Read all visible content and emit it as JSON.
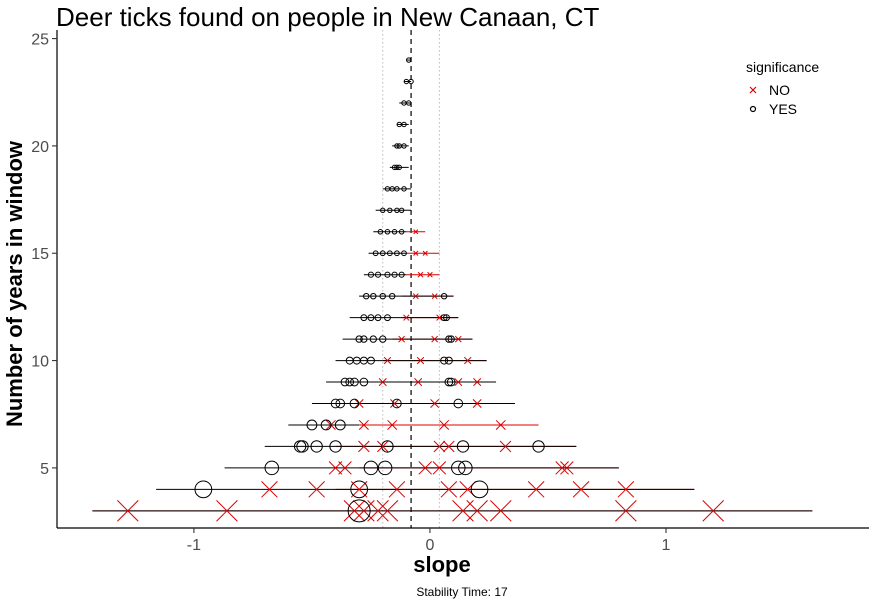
{
  "chart_data": {
    "type": "scatter",
    "title": "Deer ticks found on people in New Canaan, CT",
    "xlabel": "slope",
    "ylabel": "Number of years in window",
    "caption": "Stability Time: 17",
    "xlim": [
      -1.58,
      1.86
    ],
    "ylim": [
      2.2,
      25.4
    ],
    "xticks": [
      -1,
      0,
      1
    ],
    "xtick_labels": [
      "-1",
      "0",
      "1"
    ],
    "yticks": [
      5,
      10,
      15,
      20,
      25
    ],
    "ytick_labels": [
      "5",
      "10",
      "15",
      "20",
      "25"
    ],
    "grid": false,
    "reference_lines": {
      "dashed_x": -0.08,
      "dotted_x": [
        -0.2,
        0.04
      ]
    },
    "legend": {
      "title": "significance",
      "placement": "top-right",
      "entries": [
        {
          "label": "NO",
          "marker": "x",
          "color": "#dd0000"
        },
        {
          "label": "YES",
          "marker": "circle",
          "color": "#000000"
        }
      ]
    },
    "colors": {
      "NO": "#dd0000",
      "YES": "#000000"
    },
    "series": [
      {
        "name": "NO",
        "points": [
          {
            "y": 3,
            "x": -1.28,
            "lo": -1.43,
            "hi": 1.62
          },
          {
            "y": 3,
            "x": -0.86,
            "lo": -1.43,
            "hi": 1.62
          },
          {
            "y": 3,
            "x": -0.32,
            "lo": -1.43,
            "hi": 1.62
          },
          {
            "y": 3,
            "x": -0.28,
            "lo": -1.43,
            "hi": 1.62
          },
          {
            "y": 3,
            "x": -0.22,
            "lo": -1.43,
            "hi": 1.62
          },
          {
            "y": 3,
            "x": -0.18,
            "lo": -1.43,
            "hi": 1.62
          },
          {
            "y": 3,
            "x": 0.14,
            "lo": -1.43,
            "hi": 1.62
          },
          {
            "y": 3,
            "x": 0.2,
            "lo": -1.43,
            "hi": 1.62
          },
          {
            "y": 3,
            "x": 0.3,
            "lo": -1.43,
            "hi": 1.62
          },
          {
            "y": 3,
            "x": 0.83,
            "lo": -1.43,
            "hi": 1.62
          },
          {
            "y": 3,
            "x": 1.2,
            "lo": -1.43,
            "hi": 1.62
          },
          {
            "y": 4,
            "x": -0.68,
            "lo": -0.4,
            "hi": 1.12
          },
          {
            "y": 4,
            "x": -0.48,
            "lo": -0.4,
            "hi": 1.12
          },
          {
            "y": 4,
            "x": -0.3,
            "lo": -0.4,
            "hi": 1.12
          },
          {
            "y": 4,
            "x": -0.14,
            "lo": -0.4,
            "hi": 1.12
          },
          {
            "y": 4,
            "x": 0.08,
            "lo": -0.4,
            "hi": 1.12
          },
          {
            "y": 4,
            "x": 0.16,
            "lo": -0.4,
            "hi": 1.12
          },
          {
            "y": 4,
            "x": 0.45,
            "lo": -0.4,
            "hi": 1.12
          },
          {
            "y": 4,
            "x": 0.64,
            "lo": -0.4,
            "hi": 1.12
          },
          {
            "y": 4,
            "x": 0.83,
            "lo": -0.4,
            "hi": 1.12
          },
          {
            "y": 5,
            "x": -0.4,
            "lo": -0.3,
            "hi": 0.8
          },
          {
            "y": 5,
            "x": -0.36,
            "lo": -0.3,
            "hi": 0.8
          },
          {
            "y": 5,
            "x": -0.02,
            "lo": -0.3,
            "hi": 0.8
          },
          {
            "y": 5,
            "x": 0.04,
            "lo": -0.3,
            "hi": 0.8
          },
          {
            "y": 5,
            "x": 0.56,
            "lo": -0.3,
            "hi": 0.8
          },
          {
            "y": 5,
            "x": 0.58,
            "lo": -0.3,
            "hi": 0.8
          },
          {
            "y": 6,
            "x": -0.28,
            "lo": -0.4,
            "hi": 0.62
          },
          {
            "y": 6,
            "x": -0.2,
            "lo": -0.4,
            "hi": 0.62
          },
          {
            "y": 6,
            "x": 0.04,
            "lo": -0.4,
            "hi": 0.62
          },
          {
            "y": 6,
            "x": 0.08,
            "lo": -0.4,
            "hi": 0.62
          },
          {
            "y": 6,
            "x": 0.32,
            "lo": -0.4,
            "hi": 0.62
          },
          {
            "y": 7,
            "x": -0.42,
            "lo": -0.3,
            "hi": 0.46
          },
          {
            "y": 7,
            "x": -0.28,
            "lo": -0.3,
            "hi": 0.46
          },
          {
            "y": 7,
            "x": -0.16,
            "lo": -0.3,
            "hi": 0.46
          },
          {
            "y": 7,
            "x": 0.06,
            "lo": -0.3,
            "hi": 0.46
          },
          {
            "y": 7,
            "x": 0.3,
            "lo": -0.3,
            "hi": 0.46
          },
          {
            "y": 8,
            "x": -0.3,
            "lo": -0.3,
            "hi": 0.36
          },
          {
            "y": 8,
            "x": -0.15,
            "lo": -0.3,
            "hi": 0.36
          },
          {
            "y": 8,
            "x": 0.02,
            "lo": -0.3,
            "hi": 0.36
          },
          {
            "y": 8,
            "x": 0.2,
            "lo": -0.3,
            "hi": 0.36
          },
          {
            "y": 9,
            "x": -0.2,
            "lo": -0.25,
            "hi": 0.28
          },
          {
            "y": 9,
            "x": -0.05,
            "lo": -0.25,
            "hi": 0.28
          },
          {
            "y": 9,
            "x": 0.12,
            "lo": -0.25,
            "hi": 0.28
          },
          {
            "y": 9,
            "x": 0.2,
            "lo": -0.25,
            "hi": 0.28
          },
          {
            "y": 10,
            "x": -0.18,
            "lo": -0.2,
            "hi": 0.24
          },
          {
            "y": 10,
            "x": -0.04,
            "lo": -0.2,
            "hi": 0.24
          },
          {
            "y": 10,
            "x": 0.16,
            "lo": -0.2,
            "hi": 0.24
          },
          {
            "y": 11,
            "x": -0.12,
            "lo": -0.16,
            "hi": 0.18
          },
          {
            "y": 11,
            "x": 0.02,
            "lo": -0.16,
            "hi": 0.18
          },
          {
            "y": 11,
            "x": 0.12,
            "lo": -0.16,
            "hi": 0.18
          },
          {
            "y": 12,
            "x": -0.1,
            "lo": -0.12,
            "hi": 0.12
          },
          {
            "y": 12,
            "x": 0.04,
            "lo": -0.12,
            "hi": 0.12
          },
          {
            "y": 13,
            "x": -0.06,
            "lo": -0.12,
            "hi": 0.1
          },
          {
            "y": 13,
            "x": 0.02,
            "lo": -0.12,
            "hi": 0.1
          },
          {
            "y": 14,
            "x": -0.04,
            "lo": -0.1,
            "hi": 0.04
          },
          {
            "y": 14,
            "x": 0.0,
            "lo": -0.1,
            "hi": 0.04
          },
          {
            "y": 15,
            "x": -0.06,
            "lo": -0.1,
            "hi": 0.04
          },
          {
            "y": 15,
            "x": -0.02,
            "lo": -0.1,
            "hi": 0.04
          },
          {
            "y": 16,
            "x": -0.06,
            "lo": -0.1,
            "hi": -0.02
          }
        ]
      },
      {
        "name": "YES",
        "points": [
          {
            "y": 3,
            "x": -0.3,
            "lo": -1.43,
            "hi": 1.62
          },
          {
            "y": 4,
            "x": -0.96,
            "lo": -1.16,
            "hi": -0.4
          },
          {
            "y": 4,
            "x": -0.3,
            "lo": -0.4,
            "hi": 1.12
          },
          {
            "y": 4,
            "x": 0.21,
            "lo": -0.4,
            "hi": 1.12
          },
          {
            "y": 5,
            "x": -0.67,
            "lo": -0.87,
            "hi": -0.3
          },
          {
            "y": 5,
            "x": -0.25,
            "lo": -0.3,
            "hi": 0.8
          },
          {
            "y": 5,
            "x": -0.19,
            "lo": -0.3,
            "hi": 0.8
          },
          {
            "y": 5,
            "x": 0.12,
            "lo": -0.3,
            "hi": 0.8
          },
          {
            "y": 5,
            "x": 0.15,
            "lo": -0.3,
            "hi": 0.8
          },
          {
            "y": 6,
            "x": -0.55,
            "lo": -0.7,
            "hi": -0.4
          },
          {
            "y": 6,
            "x": -0.54,
            "lo": -0.7,
            "hi": -0.4
          },
          {
            "y": 6,
            "x": -0.48,
            "lo": -0.7,
            "hi": -0.4
          },
          {
            "y": 6,
            "x": -0.4,
            "lo": -0.7,
            "hi": -0.4
          },
          {
            "y": 6,
            "x": -0.18,
            "lo": -0.4,
            "hi": 0.62
          },
          {
            "y": 6,
            "x": 0.14,
            "lo": -0.4,
            "hi": 0.62
          },
          {
            "y": 6,
            "x": 0.46,
            "lo": -0.4,
            "hi": 0.62
          },
          {
            "y": 7,
            "x": -0.5,
            "lo": -0.6,
            "hi": -0.3
          },
          {
            "y": 7,
            "x": -0.44,
            "lo": -0.6,
            "hi": -0.3
          },
          {
            "y": 7,
            "x": -0.38,
            "lo": -0.6,
            "hi": -0.3
          },
          {
            "y": 8,
            "x": -0.4,
            "lo": -0.5,
            "hi": -0.3
          },
          {
            "y": 8,
            "x": -0.38,
            "lo": -0.5,
            "hi": -0.3
          },
          {
            "y": 8,
            "x": -0.32,
            "lo": -0.5,
            "hi": -0.3
          },
          {
            "y": 8,
            "x": -0.14,
            "lo": -0.3,
            "hi": 0.36
          },
          {
            "y": 8,
            "x": 0.12,
            "lo": -0.3,
            "hi": 0.36
          },
          {
            "y": 9,
            "x": -0.36,
            "lo": -0.44,
            "hi": -0.25
          },
          {
            "y": 9,
            "x": -0.34,
            "lo": -0.44,
            "hi": -0.25
          },
          {
            "y": 9,
            "x": -0.32,
            "lo": -0.44,
            "hi": -0.25
          },
          {
            "y": 9,
            "x": -0.28,
            "lo": -0.44,
            "hi": -0.25
          },
          {
            "y": 9,
            "x": 0.08,
            "lo": -0.25,
            "hi": 0.28
          },
          {
            "y": 9,
            "x": 0.09,
            "lo": -0.25,
            "hi": 0.28
          },
          {
            "y": 10,
            "x": -0.34,
            "lo": -0.4,
            "hi": -0.2
          },
          {
            "y": 10,
            "x": -0.31,
            "lo": -0.4,
            "hi": -0.2
          },
          {
            "y": 10,
            "x": -0.28,
            "lo": -0.4,
            "hi": -0.2
          },
          {
            "y": 10,
            "x": -0.25,
            "lo": -0.4,
            "hi": -0.2
          },
          {
            "y": 10,
            "x": 0.06,
            "lo": -0.2,
            "hi": 0.24
          },
          {
            "y": 10,
            "x": 0.08,
            "lo": -0.2,
            "hi": 0.24
          },
          {
            "y": 11,
            "x": -0.3,
            "lo": -0.37,
            "hi": -0.16
          },
          {
            "y": 11,
            "x": -0.28,
            "lo": -0.37,
            "hi": -0.16
          },
          {
            "y": 11,
            "x": -0.24,
            "lo": -0.37,
            "hi": -0.16
          },
          {
            "y": 11,
            "x": -0.2,
            "lo": -0.37,
            "hi": -0.16
          },
          {
            "y": 11,
            "x": 0.08,
            "lo": -0.16,
            "hi": 0.18
          },
          {
            "y": 11,
            "x": 0.09,
            "lo": -0.16,
            "hi": 0.18
          },
          {
            "y": 12,
            "x": -0.28,
            "lo": -0.34,
            "hi": -0.12
          },
          {
            "y": 12,
            "x": -0.25,
            "lo": -0.34,
            "hi": -0.12
          },
          {
            "y": 12,
            "x": -0.22,
            "lo": -0.34,
            "hi": -0.12
          },
          {
            "y": 12,
            "x": -0.18,
            "lo": -0.34,
            "hi": -0.12
          },
          {
            "y": 12,
            "x": 0.06,
            "lo": -0.12,
            "hi": 0.12
          },
          {
            "y": 12,
            "x": 0.07,
            "lo": -0.12,
            "hi": 0.12
          },
          {
            "y": 13,
            "x": -0.27,
            "lo": -0.3,
            "hi": -0.12
          },
          {
            "y": 13,
            "x": -0.24,
            "lo": -0.3,
            "hi": -0.12
          },
          {
            "y": 13,
            "x": -0.2,
            "lo": -0.3,
            "hi": -0.12
          },
          {
            "y": 13,
            "x": -0.16,
            "lo": -0.3,
            "hi": -0.12
          },
          {
            "y": 13,
            "x": 0.06,
            "lo": -0.12,
            "hi": 0.1
          },
          {
            "y": 14,
            "x": -0.25,
            "lo": -0.28,
            "hi": -0.1
          },
          {
            "y": 14,
            "x": -0.22,
            "lo": -0.28,
            "hi": -0.1
          },
          {
            "y": 14,
            "x": -0.18,
            "lo": -0.28,
            "hi": -0.1
          },
          {
            "y": 14,
            "x": -0.15,
            "lo": -0.28,
            "hi": -0.1
          },
          {
            "y": 14,
            "x": -0.12,
            "lo": -0.28,
            "hi": -0.1
          },
          {
            "y": 15,
            "x": -0.23,
            "lo": -0.26,
            "hi": -0.1
          },
          {
            "y": 15,
            "x": -0.2,
            "lo": -0.26,
            "hi": -0.1
          },
          {
            "y": 15,
            "x": -0.17,
            "lo": -0.26,
            "hi": -0.1
          },
          {
            "y": 15,
            "x": -0.14,
            "lo": -0.26,
            "hi": -0.1
          },
          {
            "y": 15,
            "x": -0.11,
            "lo": -0.26,
            "hi": -0.1
          },
          {
            "y": 16,
            "x": -0.21,
            "lo": -0.24,
            "hi": -0.1
          },
          {
            "y": 16,
            "x": -0.18,
            "lo": -0.24,
            "hi": -0.1
          },
          {
            "y": 16,
            "x": -0.15,
            "lo": -0.24,
            "hi": -0.1
          },
          {
            "y": 16,
            "x": -0.12,
            "lo": -0.24,
            "hi": -0.1
          },
          {
            "y": 17,
            "x": -0.2,
            "lo": -0.23,
            "hi": -0.08
          },
          {
            "y": 17,
            "x": -0.17,
            "lo": -0.23,
            "hi": -0.08
          },
          {
            "y": 17,
            "x": -0.14,
            "lo": -0.23,
            "hi": -0.08
          },
          {
            "y": 17,
            "x": -0.12,
            "lo": -0.23,
            "hi": -0.08
          },
          {
            "y": 18,
            "x": -0.18,
            "lo": -0.2,
            "hi": -0.08
          },
          {
            "y": 18,
            "x": -0.16,
            "lo": -0.2,
            "hi": -0.08
          },
          {
            "y": 18,
            "x": -0.14,
            "lo": -0.2,
            "hi": -0.08
          },
          {
            "y": 18,
            "x": -0.11,
            "lo": -0.2,
            "hi": -0.08
          },
          {
            "y": 19,
            "x": -0.15,
            "lo": -0.17,
            "hi": -0.09
          },
          {
            "y": 19,
            "x": -0.14,
            "lo": -0.17,
            "hi": -0.09
          },
          {
            "y": 19,
            "x": -0.13,
            "lo": -0.17,
            "hi": -0.09
          },
          {
            "y": 20,
            "x": -0.14,
            "lo": -0.16,
            "hi": -0.09
          },
          {
            "y": 20,
            "x": -0.13,
            "lo": -0.16,
            "hi": -0.09
          },
          {
            "y": 20,
            "x": -0.11,
            "lo": -0.16,
            "hi": -0.09
          },
          {
            "y": 21,
            "x": -0.13,
            "lo": -0.14,
            "hi": -0.09
          },
          {
            "y": 21,
            "x": -0.11,
            "lo": -0.14,
            "hi": -0.09
          },
          {
            "y": 22,
            "x": -0.11,
            "lo": -0.13,
            "hi": -0.08
          },
          {
            "y": 22,
            "x": -0.09,
            "lo": -0.13,
            "hi": -0.08
          },
          {
            "y": 23,
            "x": -0.1,
            "lo": -0.11,
            "hi": -0.08
          },
          {
            "y": 23,
            "x": -0.08,
            "lo": -0.11,
            "hi": -0.08
          },
          {
            "y": 24,
            "x": -0.09,
            "lo": -0.1,
            "hi": -0.08
          }
        ]
      }
    ]
  }
}
